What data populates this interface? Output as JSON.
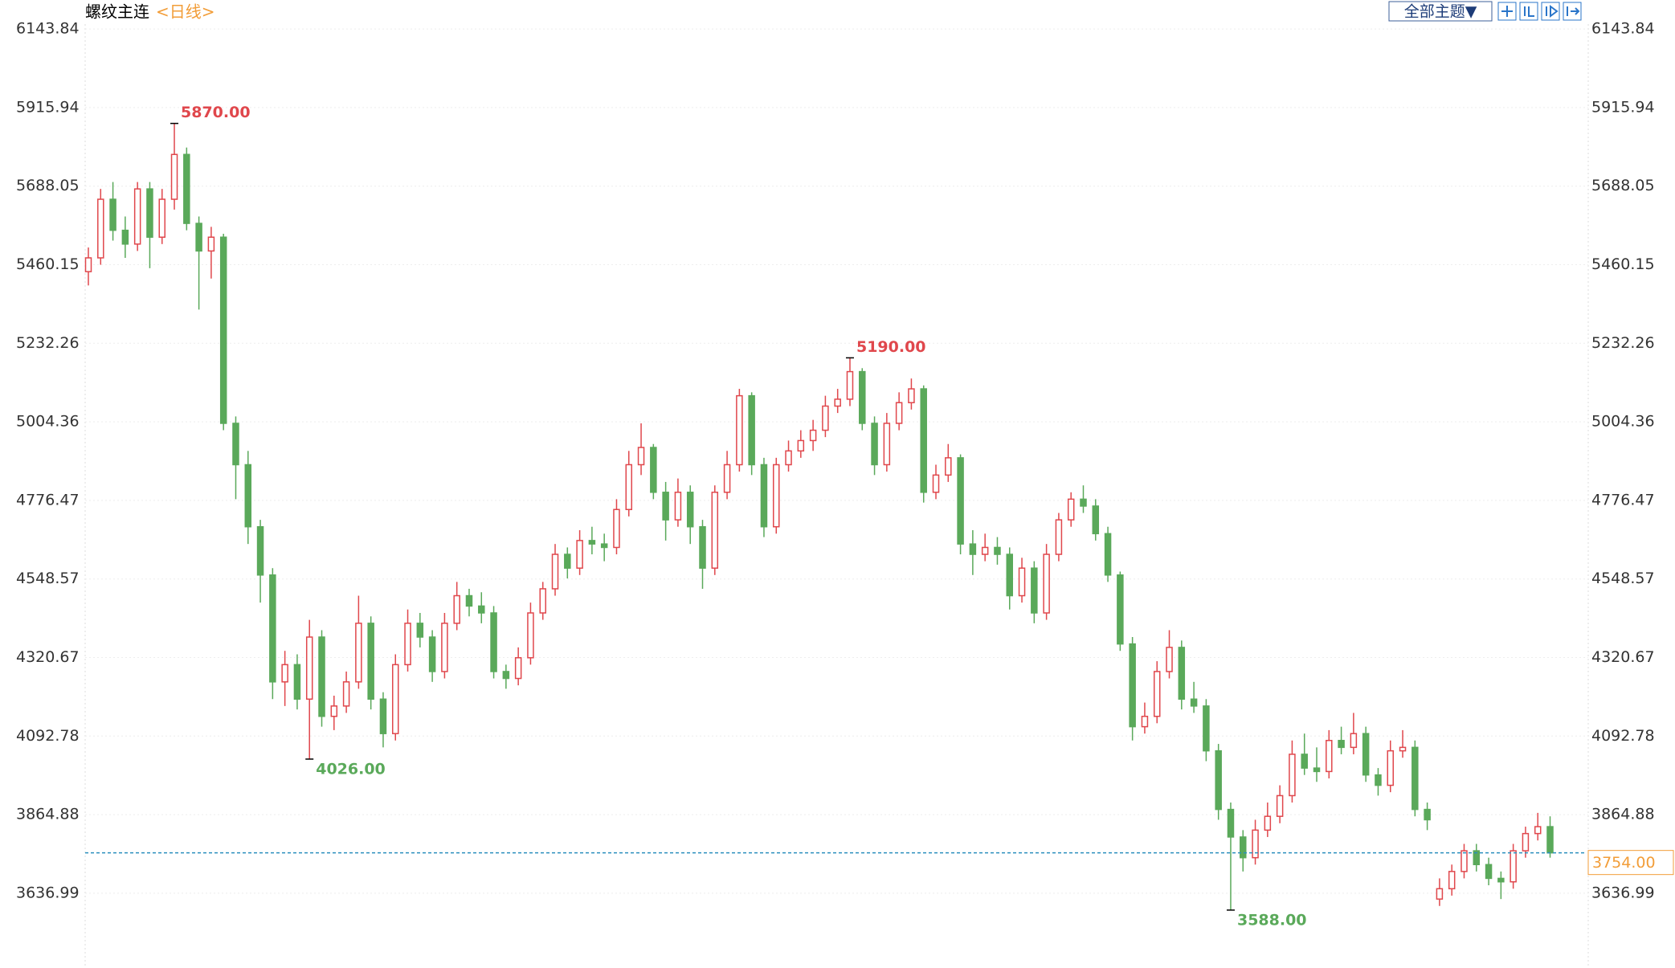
{
  "chart_data": {
    "type": "candlestick",
    "title": "螺纹主连",
    "period": "<日线>",
    "button": "全部主题▼",
    "ylim": [
      3420,
      6228
    ],
    "yticks": [
      6143.84,
      5915.94,
      5688.05,
      5460.15,
      5232.26,
      5004.36,
      4776.47,
      4548.57,
      4320.67,
      4092.78,
      3864.88,
      3636.99
    ],
    "grid": true,
    "up_color": "#e0474c",
    "down_color": "#5aa95a",
    "ohlc": [
      [
        5440,
        5510,
        5400,
        5480
      ],
      [
        5480,
        5680,
        5460,
        5650
      ],
      [
        5650,
        5700,
        5530,
        5560
      ],
      [
        5560,
        5600,
        5480,
        5520
      ],
      [
        5520,
        5700,
        5500,
        5680
      ],
      [
        5680,
        5700,
        5450,
        5540
      ],
      [
        5540,
        5680,
        5520,
        5650
      ],
      [
        5650,
        5870,
        5620,
        5780
      ],
      [
        5780,
        5800,
        5560,
        5580
      ],
      [
        5580,
        5600,
        5330,
        5500
      ],
      [
        5500,
        5570,
        5420,
        5540
      ],
      [
        5540,
        5550,
        4980,
        5000
      ],
      [
        5000,
        5020,
        4780,
        4880
      ],
      [
        4880,
        4920,
        4650,
        4700
      ],
      [
        4700,
        4720,
        4480,
        4560
      ],
      [
        4560,
        4580,
        4200,
        4250
      ],
      [
        4250,
        4340,
        4180,
        4300
      ],
      [
        4300,
        4330,
        4170,
        4200
      ],
      [
        4200,
        4430,
        4026,
        4380
      ],
      [
        4380,
        4400,
        4120,
        4150
      ],
      [
        4150,
        4210,
        4110,
        4180
      ],
      [
        4180,
        4280,
        4160,
        4250
      ],
      [
        4250,
        4500,
        4230,
        4420
      ],
      [
        4420,
        4440,
        4170,
        4200
      ],
      [
        4200,
        4220,
        4060,
        4100
      ],
      [
        4100,
        4330,
        4080,
        4300
      ],
      [
        4300,
        4460,
        4280,
        4420
      ],
      [
        4420,
        4450,
        4350,
        4380
      ],
      [
        4380,
        4400,
        4250,
        4280
      ],
      [
        4280,
        4450,
        4260,
        4420
      ],
      [
        4420,
        4540,
        4400,
        4500
      ],
      [
        4500,
        4520,
        4440,
        4470
      ],
      [
        4470,
        4510,
        4420,
        4450
      ],
      [
        4450,
        4470,
        4260,
        4280
      ],
      [
        4280,
        4300,
        4230,
        4260
      ],
      [
        4260,
        4350,
        4240,
        4320
      ],
      [
        4320,
        4480,
        4300,
        4450
      ],
      [
        4450,
        4540,
        4430,
        4520
      ],
      [
        4520,
        4650,
        4500,
        4620
      ],
      [
        4620,
        4640,
        4550,
        4580
      ],
      [
        4580,
        4690,
        4560,
        4660
      ],
      [
        4660,
        4700,
        4620,
        4650
      ],
      [
        4650,
        4680,
        4600,
        4640
      ],
      [
        4640,
        4780,
        4620,
        4750
      ],
      [
        4750,
        4920,
        4730,
        4880
      ],
      [
        4880,
        5000,
        4850,
        4930
      ],
      [
        4930,
        4940,
        4780,
        4800
      ],
      [
        4800,
        4830,
        4660,
        4720
      ],
      [
        4720,
        4840,
        4700,
        4800
      ],
      [
        4800,
        4820,
        4650,
        4700
      ],
      [
        4700,
        4720,
        4520,
        4580
      ],
      [
        4580,
        4820,
        4560,
        4800
      ],
      [
        4800,
        4920,
        4780,
        4880
      ],
      [
        4880,
        5100,
        4860,
        5080
      ],
      [
        5080,
        5090,
        4850,
        4880
      ],
      [
        4880,
        4900,
        4670,
        4700
      ],
      [
        4700,
        4900,
        4680,
        4880
      ],
      [
        4880,
        4950,
        4860,
        4920
      ],
      [
        4920,
        4980,
        4900,
        4950
      ],
      [
        4950,
        5010,
        4920,
        4980
      ],
      [
        4980,
        5080,
        4960,
        5050
      ],
      [
        5050,
        5100,
        5030,
        5070
      ],
      [
        5070,
        5190,
        5050,
        5150
      ],
      [
        5150,
        5160,
        4980,
        5000
      ],
      [
        5000,
        5020,
        4850,
        4880
      ],
      [
        4880,
        5030,
        4860,
        5000
      ],
      [
        5000,
        5090,
        4980,
        5060
      ],
      [
        5060,
        5130,
        5040,
        5100
      ],
      [
        5100,
        5110,
        4770,
        4800
      ],
      [
        4800,
        4880,
        4780,
        4850
      ],
      [
        4850,
        4940,
        4830,
        4900
      ],
      [
        4900,
        4910,
        4620,
        4650
      ],
      [
        4650,
        4690,
        4560,
        4620
      ],
      [
        4620,
        4680,
        4600,
        4640
      ],
      [
        4640,
        4670,
        4590,
        4620
      ],
      [
        4620,
        4640,
        4460,
        4500
      ],
      [
        4500,
        4610,
        4480,
        4580
      ],
      [
        4580,
        4600,
        4420,
        4450
      ],
      [
        4450,
        4650,
        4430,
        4620
      ],
      [
        4620,
        4740,
        4600,
        4720
      ],
      [
        4720,
        4800,
        4700,
        4780
      ],
      [
        4780,
        4820,
        4740,
        4760
      ],
      [
        4760,
        4780,
        4660,
        4680
      ],
      [
        4680,
        4700,
        4540,
        4560
      ],
      [
        4560,
        4570,
        4340,
        4360
      ],
      [
        4360,
        4380,
        4080,
        4120
      ],
      [
        4120,
        4190,
        4100,
        4150
      ],
      [
        4150,
        4310,
        4130,
        4280
      ],
      [
        4280,
        4400,
        4260,
        4350
      ],
      [
        4350,
        4370,
        4170,
        4200
      ],
      [
        4200,
        4250,
        4160,
        4180
      ],
      [
        4180,
        4200,
        4020,
        4050
      ],
      [
        4050,
        4070,
        3850,
        3880
      ],
      [
        3880,
        3900,
        3588,
        3800
      ],
      [
        3800,
        3820,
        3700,
        3740
      ],
      [
        3740,
        3850,
        3720,
        3820
      ],
      [
        3820,
        3900,
        3800,
        3860
      ],
      [
        3860,
        3950,
        3840,
        3920
      ],
      [
        3920,
        4080,
        3900,
        4040
      ],
      [
        4040,
        4100,
        3980,
        4000
      ],
      [
        4000,
        4060,
        3960,
        3990
      ],
      [
        3990,
        4110,
        3970,
        4080
      ],
      [
        4080,
        4120,
        4040,
        4060
      ],
      [
        4060,
        4160,
        4040,
        4100
      ],
      [
        4100,
        4120,
        3960,
        3980
      ],
      [
        3980,
        4000,
        3920,
        3950
      ],
      [
        3950,
        4080,
        3930,
        4050
      ],
      [
        4050,
        4110,
        4030,
        4060
      ],
      [
        4060,
        4080,
        3860,
        3880
      ],
      [
        3880,
        3900,
        3820,
        3850
      ],
      [
        3620,
        3680,
        3600,
        3650
      ],
      [
        3650,
        3720,
        3630,
        3700
      ],
      [
        3700,
        3780,
        3680,
        3760
      ],
      [
        3760,
        3780,
        3700,
        3720
      ],
      [
        3720,
        3740,
        3660,
        3680
      ],
      [
        3680,
        3700,
        3620,
        3670
      ],
      [
        3670,
        3780,
        3650,
        3760
      ],
      [
        3760,
        3830,
        3740,
        3810
      ],
      [
        3810,
        3870,
        3790,
        3830
      ],
      [
        3830,
        3860,
        3740,
        3754
      ]
    ],
    "markers": [
      {
        "value": 5870,
        "label": "5870.00",
        "kind": "high",
        "color": "#e0474c"
      },
      {
        "value": 4026,
        "label": "4026.00",
        "kind": "low",
        "color": "#5aa95a"
      },
      {
        "value": 5190,
        "label": "5190.00",
        "kind": "high",
        "color": "#e0474c"
      },
      {
        "value": 3588,
        "label": "3588.00",
        "kind": "low",
        "color": "#5aa95a"
      }
    ],
    "last_price": {
      "value": 3754,
      "label": "3754.00",
      "color": "#f29d38",
      "line_color": "#2a8fbd"
    }
  }
}
